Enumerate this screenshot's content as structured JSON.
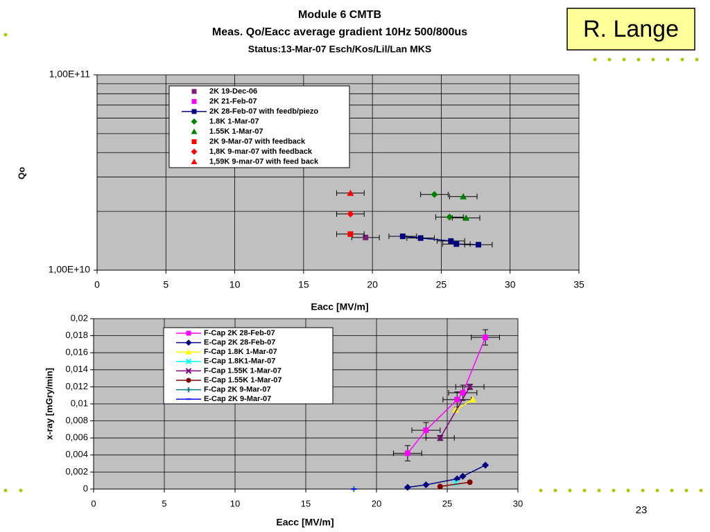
{
  "slide": {
    "author": "R. Lange",
    "page_number": "23"
  },
  "chart_data": [
    {
      "type": "scatter",
      "title": "Module 6 CMTB",
      "subtitle": "Meas. Qo/Eacc average gradient 10Hz 500/800us",
      "status": "Status:13-Mar-07 Esch/Kos/Lil/Lan MKS",
      "xlabel": "Eacc [MV/m]",
      "ylabel": "Qo",
      "log_y": true,
      "grid": true,
      "xlim": [
        0,
        35
      ],
      "xticks": [
        0,
        5,
        10,
        15,
        20,
        25,
        30,
        35
      ],
      "ylim": [
        10000000000,
        100000000000
      ],
      "yticks": [
        {
          "value": 10000000000,
          "label": "1,00E+10"
        },
        {
          "value": 100000000000,
          "label": "1,00E+11"
        }
      ],
      "y_minor_ticks": [
        20000000000,
        30000000000,
        40000000000,
        50000000000,
        60000000000,
        70000000000,
        80000000000,
        90000000000
      ],
      "series": [
        {
          "name": "2K 19-Dec-06",
          "color": "#7b1f7b",
          "marker": "square",
          "line": false,
          "x": [
            19.5
          ],
          "values": [
            14700000000
          ],
          "xerr": [
            1
          ]
        },
        {
          "name": "2K  21-Feb-07",
          "color": "#ff00ff",
          "marker": "square",
          "line": false,
          "x": [],
          "values": [],
          "xerr": []
        },
        {
          "name": "2K  28-Feb-07 with feedb/piezo",
          "color": "#000080",
          "marker": "square",
          "line": true,
          "x": [
            22.2,
            23.5,
            25.7,
            26.1,
            27.7
          ],
          "values": [
            14900000000,
            14600000000,
            14100000000,
            13600000000,
            13500000000
          ],
          "xerr": [
            1,
            1,
            1,
            1,
            1
          ]
        },
        {
          "name": "1.8K  1-Mar-07",
          "color": "#008000",
          "marker": "diamond",
          "line": false,
          "x": [
            24.5,
            25.6
          ],
          "values": [
            24400000000,
            18700000000
          ],
          "xerr": [
            1,
            1
          ]
        },
        {
          "name": "1.55K  1-Mar-07",
          "color": "#008000",
          "marker": "triangle",
          "line": false,
          "x": [
            26.6,
            26.8
          ],
          "values": [
            23800000000,
            18500000000
          ],
          "xerr": [
            1,
            1
          ]
        },
        {
          "name": "2K  9-Mar-07 with feedback",
          "color": "#ff0000",
          "marker": "square",
          "line": false,
          "x": [
            18.4
          ],
          "values": [
            15300000000
          ],
          "xerr": [
            1
          ]
        },
        {
          "name": "1,8K  9-mar-07 with feedback",
          "color": "#ff0000",
          "marker": "diamond",
          "line": false,
          "x": [
            18.4
          ],
          "values": [
            19400000000
          ],
          "xerr": [
            1
          ]
        },
        {
          "name": "1,59K  9-mar-07 with feed back",
          "color": "#ff0000",
          "marker": "triangle",
          "line": false,
          "x": [
            18.4
          ],
          "values": [
            24800000000
          ],
          "xerr": [
            1
          ]
        }
      ]
    },
    {
      "type": "line",
      "xlabel": "Eacc [MV/m]",
      "ylabel": "x-ray [mGry/min]",
      "log_y": false,
      "grid": true,
      "xlim": [
        0,
        30
      ],
      "xticks": [
        0,
        5,
        10,
        15,
        20,
        25,
        30
      ],
      "ylim": [
        0,
        0.02
      ],
      "yticks": [
        0,
        {
          "value": 0.002,
          "label": "0,002"
        },
        {
          "value": 0.004,
          "label": "0,004"
        },
        {
          "value": 0.006,
          "label": "0,006"
        },
        {
          "value": 0.008,
          "label": "0,008"
        },
        {
          "value": 0.01,
          "label": "0,01"
        },
        {
          "value": 0.012,
          "label": "0,012"
        },
        {
          "value": 0.014,
          "label": "0,014"
        },
        {
          "value": 0.016,
          "label": "0,016"
        },
        {
          "value": 0.018,
          "label": "0,018"
        },
        {
          "value": 0.02,
          "label": "0,02"
        }
      ],
      "series": [
        {
          "name": "F-Cap  2K 28-Feb-07",
          "color": "#ff00ff",
          "marker": "square",
          "x": [
            22.2,
            23.5,
            25.7,
            26.1,
            27.7
          ],
          "values": [
            0.0042,
            0.0069,
            0.0105,
            0.0113,
            0.0178
          ],
          "xerr": [
            1,
            1,
            1,
            1,
            1
          ],
          "yerr": [
            0.0009,
            0.0009,
            0.0009,
            0.0009,
            0.0009
          ]
        },
        {
          "name": "E-Cap  2K 28-Feb-07",
          "color": "#000080",
          "marker": "diamond",
          "x": [
            22.2,
            23.5,
            25.7,
            26.1,
            27.7
          ],
          "values": [
            0.0002,
            0.0005,
            0.0012,
            0.0015,
            0.0028
          ]
        },
        {
          "name": "F-Cap  1.8K 1-Mar-07",
          "color": "#ffff00",
          "marker": "triangle",
          "x": [
            25.6,
            26.8
          ],
          "values": [
            0.0093,
            0.0105
          ]
        },
        {
          "name": "E-Cap  1.8K1-Mar-07",
          "color": "#00ffff",
          "marker": "x",
          "x": [
            25.6
          ],
          "values": [
            0.0007
          ]
        },
        {
          "name": "F-Cap  1.55K 1-Mar-07",
          "color": "#800080",
          "marker": "x",
          "x": [
            24.5,
            26.6
          ],
          "values": [
            0.006,
            0.012
          ],
          "xerr": [
            1,
            1
          ],
          "yerr": [
            0.0003,
            0.0003
          ]
        },
        {
          "name": "E-Cap  1.55K 1-Mar-07",
          "color": "#800000",
          "marker": "circle",
          "x": [
            24.5,
            26.6
          ],
          "values": [
            0.0003,
            0.0008
          ]
        },
        {
          "name": "F-Cap  2K 9-Mar-07",
          "color": "#008080",
          "marker": "plus",
          "x": [
            18.4
          ],
          "values": [
            0
          ]
        },
        {
          "name": "E-Cap  2K 9-Mar-07",
          "color": "#0000ff",
          "marker": "dash",
          "x": [
            18.4
          ],
          "values": [
            0
          ]
        }
      ]
    }
  ]
}
